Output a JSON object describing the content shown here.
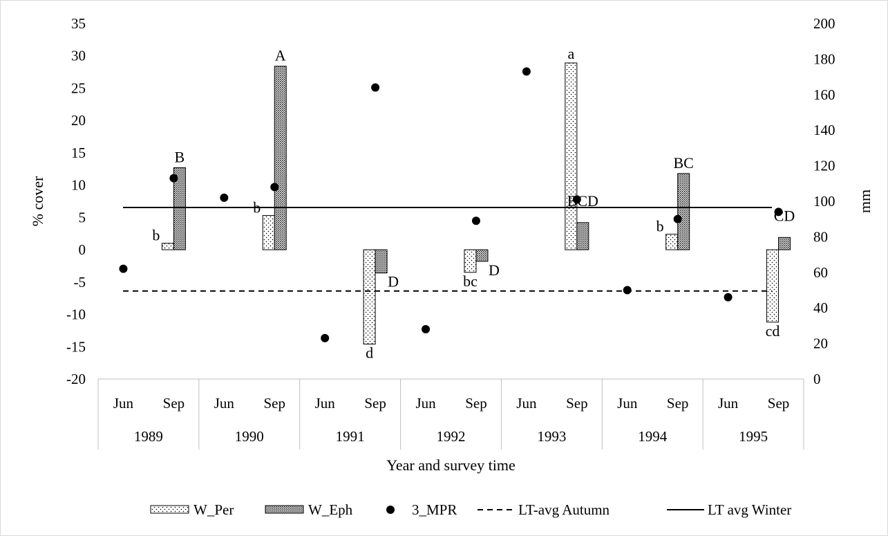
{
  "chart_data": {
    "type": "bar",
    "title": "",
    "xlabel": "Year and survey time",
    "ylabel_left": "% cover",
    "ylabel_right": "mm",
    "ylim_left": [
      -20,
      35
    ],
    "ylim_right": [
      0,
      200
    ],
    "yticks_left": [
      35,
      30,
      25,
      20,
      15,
      10,
      5,
      0,
      -5,
      -10,
      -15,
      -20
    ],
    "yticks_right": [
      200,
      180,
      160,
      140,
      120,
      100,
      80,
      60,
      40,
      20,
      0
    ],
    "grid": false,
    "legend_position": "bottom",
    "years": [
      "1989",
      "1990",
      "1991",
      "1992",
      "1993",
      "1994",
      "1995"
    ],
    "categories": [
      {
        "year": "1989",
        "month": "Jun"
      },
      {
        "year": "1989",
        "month": "Sep"
      },
      {
        "year": "1990",
        "month": "Jun"
      },
      {
        "year": "1990",
        "month": "Sep"
      },
      {
        "year": "1991",
        "month": "Jun"
      },
      {
        "year": "1991",
        "month": "Sep"
      },
      {
        "year": "1992",
        "month": "Jun"
      },
      {
        "year": "1992",
        "month": "Sep"
      },
      {
        "year": "1993",
        "month": "Jun"
      },
      {
        "year": "1993",
        "month": "Sep"
      },
      {
        "year": "1994",
        "month": "Jun"
      },
      {
        "year": "1994",
        "month": "Sep"
      },
      {
        "year": "1995",
        "month": "Jun"
      },
      {
        "year": "1995",
        "month": "Sep"
      }
    ],
    "series": [
      {
        "name": "W_Per",
        "kind": "bar",
        "axis": "left",
        "pattern": "dotted",
        "values": [
          null,
          1.0,
          null,
          5.3,
          null,
          -14.6,
          null,
          -3.5,
          null,
          28.9,
          null,
          2.4,
          null,
          -11.2
        ],
        "labels": [
          null,
          "b",
          null,
          "b",
          null,
          "d",
          null,
          "bc",
          null,
          "a",
          null,
          "b",
          null,
          "cd"
        ]
      },
      {
        "name": "W_Eph",
        "kind": "bar",
        "axis": "left",
        "pattern": "crosshatch",
        "values": [
          null,
          12.7,
          null,
          28.4,
          null,
          -3.6,
          null,
          -1.8,
          null,
          4.2,
          null,
          11.8,
          null,
          1.9
        ],
        "labels": [
          null,
          "B",
          null,
          "A",
          null,
          "D",
          null,
          "D",
          null,
          "BCD",
          null,
          "BC",
          null,
          "CD"
        ]
      },
      {
        "name": "3_MPR",
        "kind": "scatter",
        "axis": "right",
        "values": [
          62,
          113,
          102,
          108,
          23,
          164,
          28,
          89,
          173,
          101,
          50,
          90,
          46,
          94
        ]
      },
      {
        "name": "LT-avg Autumn",
        "kind": "line",
        "axis": "right",
        "style": "dashed",
        "value": 49.5
      },
      {
        "name": "LT avg Winter",
        "kind": "line",
        "axis": "right",
        "style": "solid",
        "value": 96.5
      }
    ]
  }
}
